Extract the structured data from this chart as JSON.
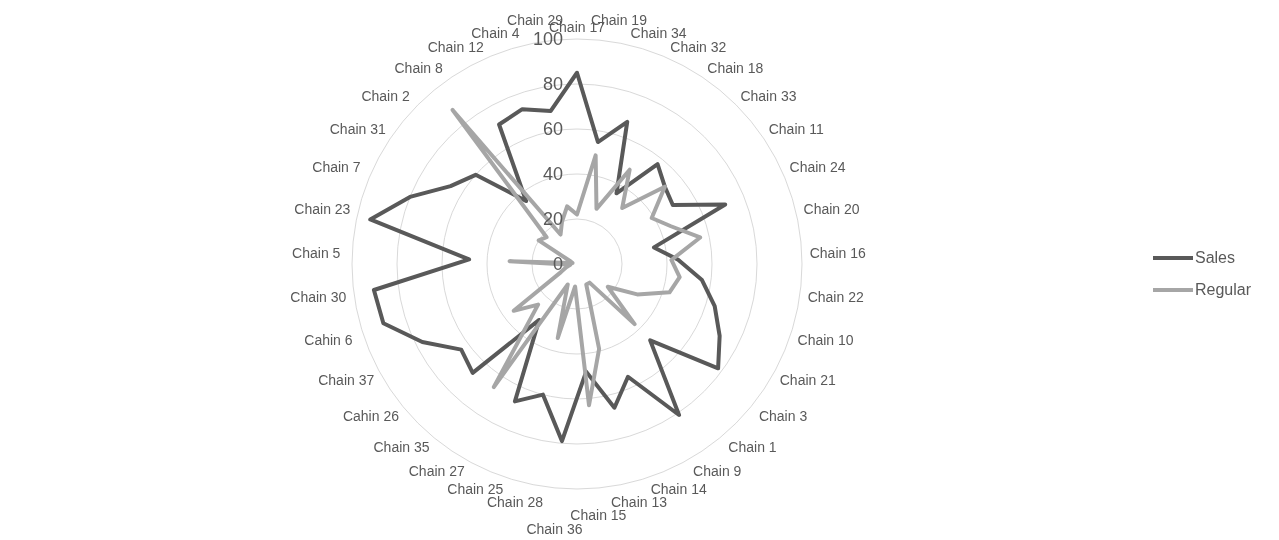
{
  "chart_data": {
    "type": "radar",
    "categories": [
      "Chain 17",
      "Chain 19",
      "Chain 34",
      "Chain 32",
      "Chain 18",
      "Chain 33",
      "Chain 11",
      "Chain 24",
      "Chain 20",
      "Chain 16",
      "Chain 22",
      "Chain 10",
      "Chain 21",
      "Chain 3",
      "Chain 1",
      "Chain 9",
      "Chain 14",
      "Chain 13",
      "Chain 15",
      "Chain 36",
      "Chain 28",
      "Chain 25",
      "Chain 27",
      "Chain 35",
      "Cahin 26",
      "Chain 37",
      "Cahin 6",
      "Chain 30",
      "Chain 5",
      "Chain 23",
      "Chain 7",
      "Chain 31",
      "Chain 2",
      "Chain 8",
      "Chain 12",
      "Chain 4",
      "Chain 29"
    ],
    "series": [
      {
        "name": "Sales",
        "color": "#595959",
        "values": [
          85,
          55,
          67,
          36,
          57,
          52,
          50,
          71,
          35,
          45,
          56,
          64,
          71,
          78,
          47,
          81,
          55,
          66,
          48,
          79,
          60,
          67,
          30,
          67,
          64,
          77,
          90,
          91,
          48,
          94,
          80,
          66,
          60,
          36,
          71,
          73,
          69
        ]
      },
      {
        "name": "Regular",
        "color": "#a6a6a6",
        "values": [
          22,
          49,
          26,
          48,
          32,
          52,
          39,
          45,
          56,
          42,
          46,
          43,
          30,
          17,
          37,
          10,
          10,
          39,
          63,
          10,
          34,
          10,
          66,
          25,
          35,
          8,
          5,
          3,
          30,
          2,
          3,
          20,
          18,
          88,
          15,
          20,
          26
        ]
      }
    ],
    "ylim": [
      0,
      100
    ],
    "yticks": [
      0,
      20,
      40,
      60,
      80,
      100
    ],
    "grid": true,
    "legend": "right",
    "marker": "none",
    "line_style": "solid"
  }
}
